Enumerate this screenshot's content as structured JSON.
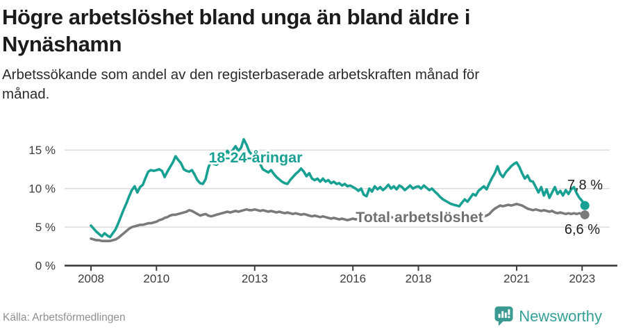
{
  "header": {
    "title": "Högre arbetslöshet bland unga än bland äldre i\nNynäshamn",
    "subtitle": "Arbetssökande som andel av den registerbaserade arbetskraften månad för\nmånad."
  },
  "footer": {
    "source": "Källa: Arbetsförmedlingen",
    "brand_name": "Newsworthy"
  },
  "colors": {
    "youth_line": "#18a192",
    "total_line": "#7a7a7a",
    "total_label": "#6f6f6f",
    "grid": "#d9d9d9",
    "axis": "#3d3d3d",
    "end_value_text": "#1d1d1d",
    "brand_teal": "#35a096",
    "brand_icon": "#3a9a92"
  },
  "chart_data": {
    "type": "line",
    "title": "Högre arbetslöshet bland unga än bland äldre i Nynäshamn",
    "subtitle": "Arbetssökande som andel av den registerbaserade arbetskraften månad för månad.",
    "x_unit": "month",
    "x_start_year": 2008,
    "x_end": "2023-02",
    "ylim": [
      0,
      17
    ],
    "grid": "horizontal",
    "x_ticks": [
      {
        "year": 2008,
        "label": "2008"
      },
      {
        "year": 2010,
        "label": "2010"
      },
      {
        "year": 2013,
        "label": "2013"
      },
      {
        "year": 2016,
        "label": "2016"
      },
      {
        "year": 2018,
        "label": "2018"
      },
      {
        "year": 2021,
        "label": "2021"
      },
      {
        "year": 2023,
        "label": "2023"
      }
    ],
    "y_ticks": [
      {
        "value": 15,
        "label": "15 %"
      },
      {
        "value": 10,
        "label": "10 %"
      },
      {
        "value": 5,
        "label": "5 %"
      },
      {
        "value": 0,
        "label": "0 %"
      }
    ],
    "series": [
      {
        "name": "18-24-åringar",
        "color": "#18a192",
        "end_label": "7,8 %",
        "values": [
          5.2,
          4.8,
          4.4,
          4.1,
          3.8,
          4.2,
          3.9,
          3.7,
          4.2,
          4.7,
          5.5,
          6.4,
          7.3,
          8.1,
          9.0,
          9.8,
          10.3,
          9.5,
          10.2,
          10.5,
          11.4,
          12.2,
          12.4,
          12.3,
          12.4,
          12.5,
          12.3,
          11.5,
          12.2,
          12.8,
          13.4,
          14.2,
          13.7,
          13.3,
          12.5,
          12.3,
          12.2,
          12.4,
          11.8,
          11.1,
          10.7,
          10.6,
          11.2,
          12.7,
          13.6,
          13.2,
          13.1,
          13.4,
          13.7,
          14.3,
          14.9,
          14.4,
          15.0,
          15.5,
          14.9,
          15.3,
          16.4,
          15.7,
          14.8,
          14.4,
          14.6,
          13.9,
          13.2,
          12.5,
          12.3,
          12.1,
          12.4,
          11.9,
          11.5,
          11.2,
          10.9,
          10.7,
          10.6,
          11.1,
          11.5,
          11.9,
          12.2,
          12.6,
          12.2,
          11.6,
          12.0,
          11.3,
          11.1,
          11.3,
          10.9,
          11.3,
          10.9,
          11.1,
          10.7,
          10.9,
          10.6,
          10.7,
          10.4,
          10.6,
          10.3,
          10.4,
          10.2,
          10.0,
          9.7,
          10.0,
          9.2,
          9.0,
          10.0,
          9.6,
          10.3,
          9.9,
          10.2,
          9.8,
          10.1,
          10.5,
          10.0,
          10.3,
          9.9,
          10.4,
          10.2,
          9.8,
          10.1,
          10.4,
          10.0,
          10.2,
          10.3,
          10.0,
          10.4,
          10.1,
          9.8,
          10.0,
          9.6,
          9.3,
          8.9,
          8.6,
          8.4,
          8.2,
          8.0,
          7.9,
          7.8,
          7.7,
          8.2,
          8.6,
          8.3,
          8.8,
          9.3,
          9.1,
          9.7,
          10.0,
          10.3,
          9.9,
          10.7,
          11.4,
          12.0,
          12.9,
          11.9,
          11.5,
          12.1,
          12.5,
          12.9,
          13.2,
          13.4,
          12.8,
          12.0,
          11.3,
          11.7,
          11.0,
          10.9,
          10.2,
          9.5,
          10.2,
          9.1,
          9.9,
          8.8,
          9.5,
          10.2,
          9.3,
          9.7,
          9.1,
          9.8,
          9.3,
          9.9,
          10.2,
          9.4,
          8.8,
          8.4,
          7.8
        ]
      },
      {
        "name": "Total arbetslöshet",
        "color": "#7a7a7a",
        "end_label": "6,6 %",
        "values": [
          3.5,
          3.4,
          3.3,
          3.3,
          3.2,
          3.2,
          3.2,
          3.2,
          3.3,
          3.4,
          3.6,
          3.9,
          4.2,
          4.5,
          4.8,
          5.0,
          5.1,
          5.2,
          5.3,
          5.3,
          5.4,
          5.5,
          5.5,
          5.6,
          5.7,
          5.9,
          6.0,
          6.2,
          6.3,
          6.5,
          6.6,
          6.6,
          6.7,
          6.8,
          6.9,
          7.0,
          7.2,
          7.1,
          6.9,
          6.7,
          6.5,
          6.6,
          6.7,
          6.5,
          6.4,
          6.5,
          6.6,
          6.7,
          6.8,
          6.9,
          7.0,
          6.9,
          7.0,
          7.1,
          7.0,
          7.1,
          7.2,
          7.3,
          7.2,
          7.2,
          7.3,
          7.2,
          7.1,
          7.2,
          7.1,
          7.0,
          7.1,
          7.0,
          6.9,
          7.0,
          6.9,
          6.8,
          6.9,
          6.8,
          6.7,
          6.8,
          6.7,
          6.6,
          6.7,
          6.6,
          6.5,
          6.4,
          6.5,
          6.4,
          6.3,
          6.4,
          6.3,
          6.2,
          6.1,
          6.2,
          6.1,
          6.0,
          6.1,
          6.0,
          5.9,
          6.0,
          6.1,
          6.0,
          6.1,
          6.2,
          6.1,
          6.0,
          6.1,
          6.2,
          6.1,
          6.2,
          6.1,
          6.2,
          6.1,
          6.2,
          6.3,
          6.2,
          6.1,
          6.2,
          6.1,
          6.0,
          6.1,
          6.2,
          6.1,
          6.0,
          6.1,
          6.0,
          5.9,
          6.0,
          5.9,
          5.8,
          5.9,
          5.8,
          5.9,
          5.8,
          5.9,
          6.0,
          5.9,
          6.0,
          5.9,
          6.0,
          6.1,
          6.0,
          6.1,
          6.2,
          6.1,
          6.2,
          6.3,
          6.4,
          6.4,
          6.5,
          6.7,
          7.1,
          7.4,
          7.6,
          7.8,
          7.7,
          7.8,
          7.9,
          7.8,
          7.9,
          8.0,
          7.9,
          7.8,
          7.6,
          7.4,
          7.3,
          7.2,
          7.3,
          7.2,
          7.1,
          7.2,
          7.1,
          7.0,
          7.1,
          6.9,
          6.8,
          6.9,
          6.8,
          6.7,
          6.8,
          6.7,
          6.8,
          6.7,
          6.8,
          6.7,
          6.6
        ]
      }
    ],
    "legend_position": "inline-labels"
  }
}
